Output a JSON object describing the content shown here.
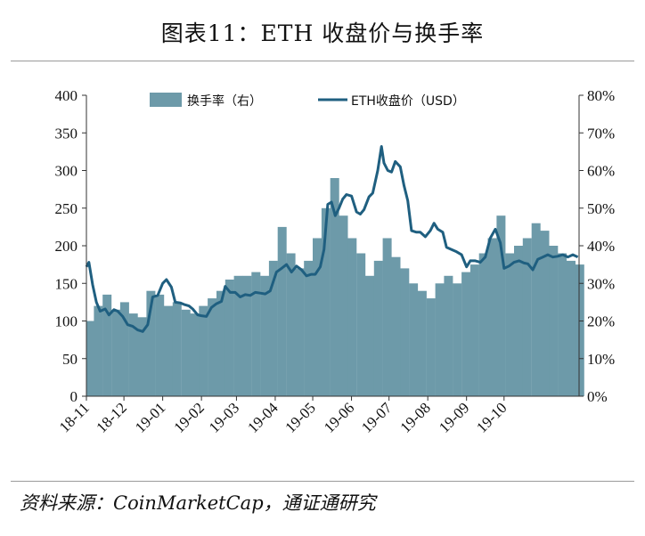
{
  "title": "图表11：ETH 收盘价与换手率",
  "source": "资料来源：CoinMarketCap，通证通研究",
  "chart_data": {
    "type": "bar+line",
    "legend_position": "top-center",
    "grid": false,
    "left_axis": {
      "min": 0,
      "max": 400,
      "ticks": [
        "0",
        "50",
        "100",
        "150",
        "200",
        "250",
        "300",
        "350",
        "400"
      ]
    },
    "right_axis": {
      "min": 0,
      "max": 80,
      "ticks": [
        "0%",
        "10%",
        "20%",
        "30%",
        "40%",
        "50%",
        "60%",
        "70%",
        "80%"
      ]
    },
    "x_axis": {
      "range": [
        "2018-11-01",
        "2019-11-30"
      ],
      "ticks": [
        {
          "label": "18-11",
          "date": "2018-11-01"
        },
        {
          "label": "18-12",
          "date": "2018-12-01"
        },
        {
          "label": "19-01",
          "date": "2019-01-01"
        },
        {
          "label": "19-02",
          "date": "2019-02-01"
        },
        {
          "label": "19-03",
          "date": "2019-03-01"
        },
        {
          "label": "19-04",
          "date": "2019-04-01"
        },
        {
          "label": "19-05",
          "date": "2019-05-01"
        },
        {
          "label": "19-06",
          "date": "2019-06-01"
        },
        {
          "label": "19-07",
          "date": "2019-07-01"
        },
        {
          "label": "19-08",
          "date": "2019-08-01"
        },
        {
          "label": "19-09",
          "date": "2019-09-01"
        },
        {
          "label": "19-10",
          "date": "2019-10-01"
        }
      ]
    },
    "series": [
      {
        "name": "换手率（右）",
        "type": "bar",
        "axis": "right",
        "color": "#6d9aa9",
        "points": [
          [
            "2018-11-01",
            20
          ],
          [
            "2018-11-07",
            24
          ],
          [
            "2018-11-14",
            27
          ],
          [
            "2018-11-21",
            23
          ],
          [
            "2018-11-28",
            25
          ],
          [
            "2018-12-05",
            22
          ],
          [
            "2018-12-12",
            21
          ],
          [
            "2018-12-19",
            28
          ],
          [
            "2018-12-26",
            27
          ],
          [
            "2019-01-02",
            24
          ],
          [
            "2019-01-09",
            25
          ],
          [
            "2019-01-16",
            23
          ],
          [
            "2019-01-23",
            22
          ],
          [
            "2019-01-30",
            24
          ],
          [
            "2019-02-06",
            26
          ],
          [
            "2019-02-13",
            28
          ],
          [
            "2019-02-20",
            31
          ],
          [
            "2019-02-27",
            32
          ],
          [
            "2019-03-06",
            32
          ],
          [
            "2019-03-13",
            33
          ],
          [
            "2019-03-20",
            32
          ],
          [
            "2019-03-27",
            36
          ],
          [
            "2019-04-03",
            45
          ],
          [
            "2019-04-10",
            38
          ],
          [
            "2019-04-17",
            34
          ],
          [
            "2019-04-24",
            36
          ],
          [
            "2019-05-01",
            42
          ],
          [
            "2019-05-08",
            50
          ],
          [
            "2019-05-15",
            58
          ],
          [
            "2019-05-22",
            48
          ],
          [
            "2019-05-29",
            42
          ],
          [
            "2019-06-05",
            38
          ],
          [
            "2019-06-12",
            32
          ],
          [
            "2019-06-19",
            36
          ],
          [
            "2019-06-26",
            42
          ],
          [
            "2019-07-03",
            37
          ],
          [
            "2019-07-10",
            34
          ],
          [
            "2019-07-17",
            30
          ],
          [
            "2019-07-24",
            28
          ],
          [
            "2019-07-31",
            26
          ],
          [
            "2019-08-07",
            30
          ],
          [
            "2019-08-14",
            32
          ],
          [
            "2019-08-21",
            30
          ],
          [
            "2019-08-28",
            33
          ],
          [
            "2019-09-04",
            35
          ],
          [
            "2019-09-11",
            38
          ],
          [
            "2019-09-18",
            42
          ],
          [
            "2019-09-25",
            48
          ],
          [
            "2019-10-02",
            38
          ],
          [
            "2019-10-09",
            40
          ],
          [
            "2019-10-16",
            42
          ],
          [
            "2019-10-23",
            46
          ],
          [
            "2019-10-30",
            44
          ],
          [
            "2019-11-06",
            40
          ],
          [
            "2019-11-13",
            38
          ],
          [
            "2019-11-20",
            36
          ],
          [
            "2019-11-27",
            35
          ]
        ]
      },
      {
        "name": "ETH收盘价（USD）",
        "type": "line",
        "axis": "left",
        "color": "#1f5f80",
        "points": [
          [
            "2018-11-01",
            172
          ],
          [
            "2018-11-03",
            178
          ],
          [
            "2018-11-06",
            148
          ],
          [
            "2018-11-09",
            125
          ],
          [
            "2018-11-12",
            113
          ],
          [
            "2018-11-16",
            116
          ],
          [
            "2018-11-19",
            108
          ],
          [
            "2018-11-23",
            115
          ],
          [
            "2018-11-26",
            113
          ],
          [
            "2018-11-30",
            106
          ],
          [
            "2018-12-04",
            95
          ],
          [
            "2018-12-08",
            93
          ],
          [
            "2018-12-12",
            88
          ],
          [
            "2018-12-16",
            86
          ],
          [
            "2018-12-20",
            95
          ],
          [
            "2018-12-24",
            132
          ],
          [
            "2018-12-28",
            134
          ],
          [
            "2019-01-01",
            150
          ],
          [
            "2019-01-04",
            155
          ],
          [
            "2019-01-08",
            145
          ],
          [
            "2019-01-11",
            125
          ],
          [
            "2019-01-15",
            124
          ],
          [
            "2019-01-18",
            122
          ],
          [
            "2019-01-22",
            120
          ],
          [
            "2019-01-25",
            116
          ],
          [
            "2019-01-29",
            108
          ],
          [
            "2019-02-01",
            107
          ],
          [
            "2019-02-05",
            106
          ],
          [
            "2019-02-09",
            118
          ],
          [
            "2019-02-13",
            123
          ],
          [
            "2019-02-17",
            126
          ],
          [
            "2019-02-20",
            146
          ],
          [
            "2019-02-24",
            138
          ],
          [
            "2019-02-28",
            138
          ],
          [
            "2019-03-04",
            132
          ],
          [
            "2019-03-08",
            135
          ],
          [
            "2019-03-12",
            134
          ],
          [
            "2019-03-16",
            138
          ],
          [
            "2019-03-20",
            137
          ],
          [
            "2019-03-24",
            136
          ],
          [
            "2019-03-28",
            140
          ],
          [
            "2019-04-02",
            165
          ],
          [
            "2019-04-06",
            170
          ],
          [
            "2019-04-10",
            175
          ],
          [
            "2019-04-14",
            165
          ],
          [
            "2019-04-18",
            173
          ],
          [
            "2019-04-22",
            168
          ],
          [
            "2019-04-26",
            160
          ],
          [
            "2019-04-30",
            162
          ],
          [
            "2019-05-03",
            162
          ],
          [
            "2019-05-07",
            172
          ],
          [
            "2019-05-10",
            195
          ],
          [
            "2019-05-13",
            255
          ],
          [
            "2019-05-16",
            258
          ],
          [
            "2019-05-19",
            240
          ],
          [
            "2019-05-22",
            250
          ],
          [
            "2019-05-25",
            262
          ],
          [
            "2019-05-28",
            268
          ],
          [
            "2019-06-01",
            266
          ],
          [
            "2019-06-05",
            245
          ],
          [
            "2019-06-08",
            242
          ],
          [
            "2019-06-11",
            248
          ],
          [
            "2019-06-15",
            265
          ],
          [
            "2019-06-18",
            270
          ],
          [
            "2019-06-22",
            300
          ],
          [
            "2019-06-25",
            332
          ],
          [
            "2019-06-27",
            310
          ],
          [
            "2019-06-30",
            300
          ],
          [
            "2019-07-03",
            298
          ],
          [
            "2019-07-06",
            312
          ],
          [
            "2019-07-10",
            305
          ],
          [
            "2019-07-13",
            280
          ],
          [
            "2019-07-16",
            260
          ],
          [
            "2019-07-19",
            220
          ],
          [
            "2019-07-23",
            218
          ],
          [
            "2019-07-26",
            218
          ],
          [
            "2019-07-30",
            212
          ],
          [
            "2019-08-03",
            220
          ],
          [
            "2019-08-06",
            230
          ],
          [
            "2019-08-09",
            222
          ],
          [
            "2019-08-13",
            218
          ],
          [
            "2019-08-16",
            198
          ],
          [
            "2019-08-20",
            195
          ],
          [
            "2019-08-24",
            192
          ],
          [
            "2019-08-28",
            188
          ],
          [
            "2019-09-01",
            172
          ],
          [
            "2019-09-04",
            180
          ],
          [
            "2019-09-08",
            180
          ],
          [
            "2019-09-12",
            178
          ],
          [
            "2019-09-16",
            185
          ],
          [
            "2019-09-20",
            210
          ],
          [
            "2019-09-24",
            222
          ],
          [
            "2019-09-28",
            204
          ],
          [
            "2019-10-01",
            170
          ],
          [
            "2019-10-05",
            173
          ],
          [
            "2019-10-09",
            178
          ],
          [
            "2019-10-13",
            180
          ],
          [
            "2019-10-17",
            177
          ],
          [
            "2019-10-20",
            176
          ],
          [
            "2019-10-24",
            168
          ],
          [
            "2019-10-28",
            182
          ],
          [
            "2019-11-01",
            185
          ],
          [
            "2019-11-05",
            188
          ],
          [
            "2019-11-09",
            185
          ],
          [
            "2019-11-13",
            186
          ],
          [
            "2019-11-17",
            188
          ],
          [
            "2019-11-21",
            185
          ],
          [
            "2019-11-25",
            188
          ],
          [
            "2019-11-29",
            185
          ]
        ]
      }
    ]
  }
}
